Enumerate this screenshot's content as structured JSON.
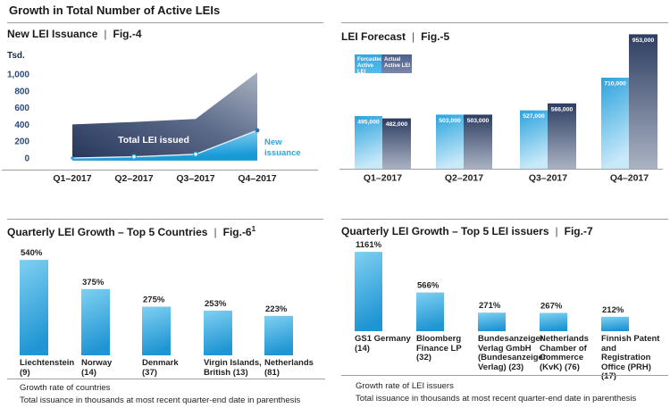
{
  "title": "Growth in Total Number of Active LEIs",
  "colors": {
    "accent_blue": "#29a8e0",
    "tick_blue": "#2c4b7c",
    "text_dark": "#231f20",
    "area_dark_start": "#26365a",
    "area_dark_end": "#a9b1c1",
    "bar_dark_top": "#2e3e62",
    "bar_dark_bottom": "#aab2c3",
    "bar_light_top": "#2aa3dd",
    "bar_light_bottom": "#c9e9f9",
    "bar_cyan_top": "#7fd0f2",
    "bar_cyan_bottom": "#1f95d3",
    "divider_gray": "#9aa0a6"
  },
  "panels": [
    {
      "title": "New LEI Issuance",
      "sep": "|",
      "fig_label": "Fig.-4"
    },
    {
      "title": "LEI Forecast",
      "sep": "|",
      "fig_label": "Fig.-5"
    },
    {
      "title": "Quarterly LEI Growth – Top 5 Countries",
      "sep": "|",
      "fig_label": "Fig.-6",
      "fig_superscript": "1"
    },
    {
      "title": "Quarterly LEI Growth – Top 5 LEI issuers",
      "sep": "|",
      "fig_label": "Fig.-7"
    }
  ],
  "chart_data": [
    {
      "id": "fig4",
      "type": "area",
      "title": "New LEI Issuance",
      "fig": "Fig.-4",
      "unit_label": "Tsd.",
      "categories": [
        "Q1–2017",
        "Q2–2017",
        "Q3–2017",
        "Q4–2017"
      ],
      "yticks": [
        0,
        200,
        400,
        600,
        800,
        1000
      ],
      "ylim": [
        0,
        1050
      ],
      "series": [
        {
          "name": "Total LEI issued",
          "values": [
            400,
            430,
            465,
            1020
          ]
        },
        {
          "name": "New issuance",
          "values": [
            0,
            15,
            45,
            330
          ]
        }
      ],
      "legend_position": "in-chart"
    },
    {
      "id": "fig5",
      "type": "bar",
      "title": "LEI Forecast",
      "fig": "Fig.-5",
      "categories": [
        "Q1–2017",
        "Q2–2017",
        "Q3–2017",
        "Q4–2017"
      ],
      "series": [
        {
          "name": "Forcasted Active LEI",
          "legend_label": "Forcasted\nActive LEI",
          "values": [
            495000,
            503000,
            527000,
            710000
          ]
        },
        {
          "name": "Actual Active LEI",
          "legend_label": "Actual\nActive LEI",
          "values": [
            482000,
            503000,
            566000,
            953000
          ]
        }
      ],
      "legend_position": "top-left"
    },
    {
      "id": "fig6",
      "type": "bar",
      "title": "Quarterly LEI Growth – Top 5 Countries",
      "fig": "Fig.-6",
      "categories": [
        "Liechtenstein\n(9)",
        "Norway\n(14)",
        "Denmark\n(37)",
        "Virgin Islands,\nBritish (13)",
        "Netherlands\n(81)"
      ],
      "values": [
        540,
        375,
        275,
        253,
        223
      ],
      "value_suffix": "%",
      "footnotes": [
        "Growth rate of countries",
        "Total issuance in thousands at most recent quarter-end date in parenthesis"
      ]
    },
    {
      "id": "fig7",
      "type": "bar",
      "title": "Quarterly LEI Growth – Top 5 LEI issuers",
      "fig": "Fig.-7",
      "categories": [
        "GS1 Germany\n(14)",
        "Bloomberg\nFinance LP\n(32)",
        "Bundesanzeiger\nVerlag GmbH\n(Bundesanzeiger\nVerlag) (23)",
        "Netherlands\nChamber of\nCommerce\n(KvK) (76)",
        "Finnish Patent\nand Registration\nOffice (PRH)\n(17)"
      ],
      "values": [
        1161,
        566,
        271,
        267,
        212
      ],
      "value_suffix": "%",
      "footnotes": [
        "Growth rate of LEI issuers",
        "Total issuance in thousands at most recent quarter-end date in parenthesis"
      ]
    }
  ]
}
